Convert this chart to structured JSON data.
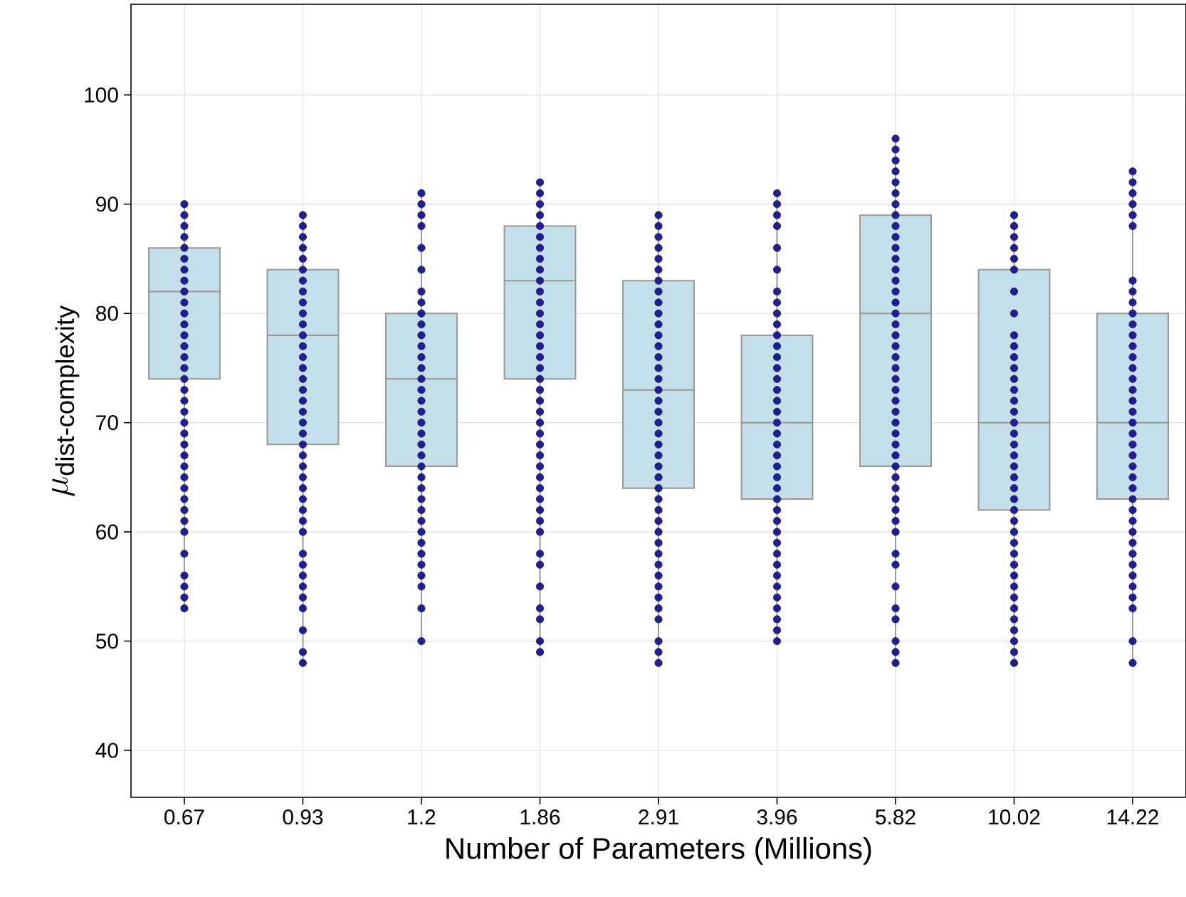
{
  "chart_data": {
    "type": "box",
    "xlabel": "Number of Parameters (Millions)",
    "ylabel": "\\mu_{\\text{dist-complexity}}",
    "categories": [
      "0.67",
      "0.93",
      "1.2",
      "1.86",
      "2.91",
      "3.96",
      "5.82",
      "10.02",
      "14.22"
    ],
    "color": "#c5dfe8",
    "grid": true,
    "ylim": [
      35.7,
      108.3
    ],
    "yticks": [
      40,
      50,
      60,
      70,
      80,
      90,
      100
    ],
    "boxes": [
      {
        "low": 53,
        "q1": 74,
        "median": 82,
        "q3": 86,
        "high": 90
      },
      {
        "low": 48,
        "q1": 68,
        "median": 78,
        "q3": 84,
        "high": 89
      },
      {
        "low": 50,
        "q1": 66,
        "median": 74,
        "q3": 80,
        "high": 91
      },
      {
        "low": 49,
        "q1": 74,
        "median": 83,
        "q3": 88,
        "high": 92
      },
      {
        "low": 48,
        "q1": 64,
        "median": 73,
        "q3": 83,
        "high": 89
      },
      {
        "low": 50,
        "q1": 63,
        "median": 70,
        "q3": 78,
        "high": 91
      },
      {
        "low": 48,
        "q1": 66,
        "median": 80,
        "q3": 89,
        "high": 96
      },
      {
        "low": 48,
        "q1": 62,
        "median": 70,
        "q3": 84,
        "high": 89
      },
      {
        "low": 48,
        "q1": 63,
        "median": 70,
        "q3": 80,
        "high": 93
      }
    ],
    "series": [
      {
        "type": "scatter",
        "color": "#1f1f8f",
        "marker": "circle",
        "x": [
          "0.67",
          "0.67",
          "0.67",
          "0.67",
          "0.67",
          "0.67",
          "0.67",
          "0.67",
          "0.67",
          "0.67",
          "0.67",
          "0.67",
          "0.67",
          "0.67",
          "0.67",
          "0.67",
          "0.67",
          "0.67",
          "0.67",
          "0.67",
          "0.67",
          "0.67",
          "0.67",
          "0.67",
          "0.67",
          "0.67",
          "0.67",
          "0.67",
          "0.67",
          "0.67",
          "0.67",
          "0.67",
          "0.67",
          "0.67",
          "0.67",
          "0.67",
          "0.93",
          "0.93",
          "0.93",
          "0.93",
          "0.93",
          "0.93",
          "0.93",
          "0.93",
          "0.93",
          "0.93",
          "0.93",
          "0.93",
          "0.93",
          "0.93",
          "0.93",
          "0.93",
          "0.93",
          "0.93",
          "0.93",
          "0.93",
          "0.93",
          "0.93",
          "0.93",
          "0.93",
          "0.93",
          "0.93",
          "0.93",
          "0.93",
          "0.93",
          "0.93",
          "0.93",
          "0.93",
          "0.93",
          "0.93",
          "0.93",
          "0.93",
          "0.93",
          "0.93",
          "0.93",
          "1.2",
          "1.2",
          "1.2",
          "1.2",
          "1.2",
          "1.2",
          "1.2",
          "1.2",
          "1.2",
          "1.2",
          "1.2",
          "1.2",
          "1.2",
          "1.2",
          "1.2",
          "1.2",
          "1.2",
          "1.2",
          "1.2",
          "1.2",
          "1.2",
          "1.2",
          "1.2",
          "1.2",
          "1.2",
          "1.2",
          "1.2",
          "1.2",
          "1.2",
          "1.2",
          "1.2",
          "1.2",
          "1.2",
          "1.2",
          "1.2",
          "1.2",
          "1.86",
          "1.86",
          "1.86",
          "1.86",
          "1.86",
          "1.86",
          "1.86",
          "1.86",
          "1.86",
          "1.86",
          "1.86",
          "1.86",
          "1.86",
          "1.86",
          "1.86",
          "1.86",
          "1.86",
          "1.86",
          "1.86",
          "1.86",
          "1.86",
          "1.86",
          "1.86",
          "1.86",
          "1.86",
          "1.86",
          "1.86",
          "1.86",
          "1.86",
          "1.86",
          "1.86",
          "1.86",
          "1.86",
          "1.86",
          "1.86",
          "1.86",
          "1.86",
          "1.86",
          "1.86",
          "1.86",
          "2.91",
          "2.91",
          "2.91",
          "2.91",
          "2.91",
          "2.91",
          "2.91",
          "2.91",
          "2.91",
          "2.91",
          "2.91",
          "2.91",
          "2.91",
          "2.91",
          "2.91",
          "2.91",
          "2.91",
          "2.91",
          "2.91",
          "2.91",
          "2.91",
          "2.91",
          "2.91",
          "2.91",
          "2.91",
          "2.91",
          "2.91",
          "2.91",
          "2.91",
          "2.91",
          "2.91",
          "2.91",
          "2.91",
          "2.91",
          "2.91",
          "2.91",
          "2.91",
          "2.91",
          "2.91",
          "2.91",
          "2.91",
          "3.96",
          "3.96",
          "3.96",
          "3.96",
          "3.96",
          "3.96",
          "3.96",
          "3.96",
          "3.96",
          "3.96",
          "3.96",
          "3.96",
          "3.96",
          "3.96",
          "3.96",
          "3.96",
          "3.96",
          "3.96",
          "3.96",
          "3.96",
          "3.96",
          "3.96",
          "3.96",
          "3.96",
          "3.96",
          "3.96",
          "3.96",
          "3.96",
          "3.96",
          "3.96",
          "3.96",
          "3.96",
          "3.96",
          "3.96",
          "3.96",
          "3.96",
          "3.96",
          "3.96",
          "3.96",
          "5.82",
          "5.82",
          "5.82",
          "5.82",
          "5.82",
          "5.82",
          "5.82",
          "5.82",
          "5.82",
          "5.82",
          "5.82",
          "5.82",
          "5.82",
          "5.82",
          "5.82",
          "5.82",
          "5.82",
          "5.82",
          "5.82",
          "5.82",
          "5.82",
          "5.82",
          "5.82",
          "5.82",
          "5.82",
          "5.82",
          "5.82",
          "5.82",
          "5.82",
          "5.82",
          "5.82",
          "5.82",
          "5.82",
          "5.82",
          "5.82",
          "5.82",
          "5.82",
          "5.82",
          "5.82",
          "5.82",
          "5.82",
          "5.82",
          "5.82",
          "5.82",
          "5.82",
          "10.02",
          "10.02",
          "10.02",
          "10.02",
          "10.02",
          "10.02",
          "10.02",
          "10.02",
          "10.02",
          "10.02",
          "10.02",
          "10.02",
          "10.02",
          "10.02",
          "10.02",
          "10.02",
          "10.02",
          "10.02",
          "10.02",
          "10.02",
          "10.02",
          "10.02",
          "10.02",
          "10.02",
          "10.02",
          "10.02",
          "10.02",
          "10.02",
          "10.02",
          "10.02",
          "10.02",
          "10.02",
          "10.02",
          "10.02",
          "10.02",
          "10.02",
          "10.02",
          "10.02",
          "10.02",
          "14.22",
          "14.22",
          "14.22",
          "14.22",
          "14.22",
          "14.22",
          "14.22",
          "14.22",
          "14.22",
          "14.22",
          "14.22",
          "14.22",
          "14.22",
          "14.22",
          "14.22",
          "14.22",
          "14.22",
          "14.22",
          "14.22",
          "14.22",
          "14.22",
          "14.22",
          "14.22",
          "14.22",
          "14.22",
          "14.22",
          "14.22",
          "14.22",
          "14.22",
          "14.22",
          "14.22",
          "14.22",
          "14.22",
          "14.22",
          "14.22",
          "14.22",
          "14.22",
          "14.22",
          "14.22"
        ],
        "values": [
          53,
          54,
          55,
          56,
          58,
          60,
          61,
          62,
          63,
          64,
          65,
          66,
          67,
          68,
          69,
          70,
          71,
          72,
          73,
          74,
          75,
          76,
          77,
          78,
          79,
          80,
          81,
          82,
          83,
          84,
          85,
          86,
          87,
          88,
          89,
          90,
          48,
          49,
          51,
          53,
          54,
          55,
          56,
          57,
          58,
          60,
          61,
          62,
          63,
          64,
          65,
          66,
          67,
          68,
          69,
          70,
          71,
          72,
          73,
          74,
          75,
          76,
          77,
          78,
          79,
          80,
          81,
          82,
          83,
          84,
          85,
          86,
          87,
          88,
          89,
          50,
          53,
          55,
          56,
          57,
          58,
          59,
          60,
          61,
          62,
          63,
          64,
          65,
          66,
          67,
          68,
          69,
          70,
          71,
          72,
          73,
          74,
          75,
          76,
          77,
          78,
          79,
          80,
          81,
          82,
          84,
          86,
          88,
          89,
          90,
          91,
          49,
          50,
          52,
          53,
          55,
          57,
          58,
          60,
          61,
          62,
          63,
          64,
          65,
          66,
          67,
          68,
          69,
          70,
          71,
          72,
          73,
          74,
          75,
          76,
          77,
          78,
          79,
          80,
          81,
          82,
          83,
          84,
          85,
          86,
          87,
          88,
          89,
          90,
          91,
          92,
          48,
          49,
          50,
          52,
          53,
          54,
          55,
          56,
          57,
          58,
          59,
          60,
          61,
          62,
          63,
          64,
          65,
          66,
          67,
          68,
          69,
          70,
          71,
          72,
          73,
          74,
          75,
          76,
          77,
          78,
          79,
          80,
          81,
          82,
          83,
          84,
          85,
          86,
          87,
          88,
          89,
          50,
          51,
          52,
          53,
          54,
          55,
          56,
          57,
          58,
          59,
          60,
          61,
          62,
          63,
          64,
          65,
          66,
          67,
          68,
          69,
          70,
          71,
          72,
          73,
          74,
          75,
          76,
          77,
          78,
          79,
          80,
          81,
          82,
          84,
          86,
          88,
          89,
          90,
          91,
          48,
          49,
          50,
          52,
          53,
          55,
          57,
          58,
          60,
          61,
          62,
          63,
          64,
          65,
          66,
          67,
          68,
          69,
          70,
          71,
          72,
          73,
          74,
          75,
          76,
          77,
          78,
          79,
          80,
          81,
          82,
          83,
          84,
          85,
          86,
          87,
          88,
          89,
          90,
          91,
          92,
          93,
          94,
          95,
          96,
          48,
          49,
          50,
          51,
          52,
          53,
          54,
          55,
          56,
          57,
          58,
          59,
          60,
          61,
          62,
          63,
          64,
          65,
          66,
          67,
          68,
          69,
          70,
          71,
          72,
          73,
          74,
          75,
          76,
          77,
          78,
          80,
          82,
          84,
          85,
          86,
          87,
          88,
          89,
          48,
          50,
          53,
          54,
          55,
          56,
          57,
          58,
          59,
          60,
          61,
          62,
          63,
          64,
          65,
          66,
          67,
          68,
          69,
          70,
          71,
          72,
          73,
          74,
          75,
          76,
          77,
          78,
          79,
          80,
          81,
          82,
          83,
          88,
          89,
          90,
          91,
          92,
          93
        ]
      }
    ]
  }
}
